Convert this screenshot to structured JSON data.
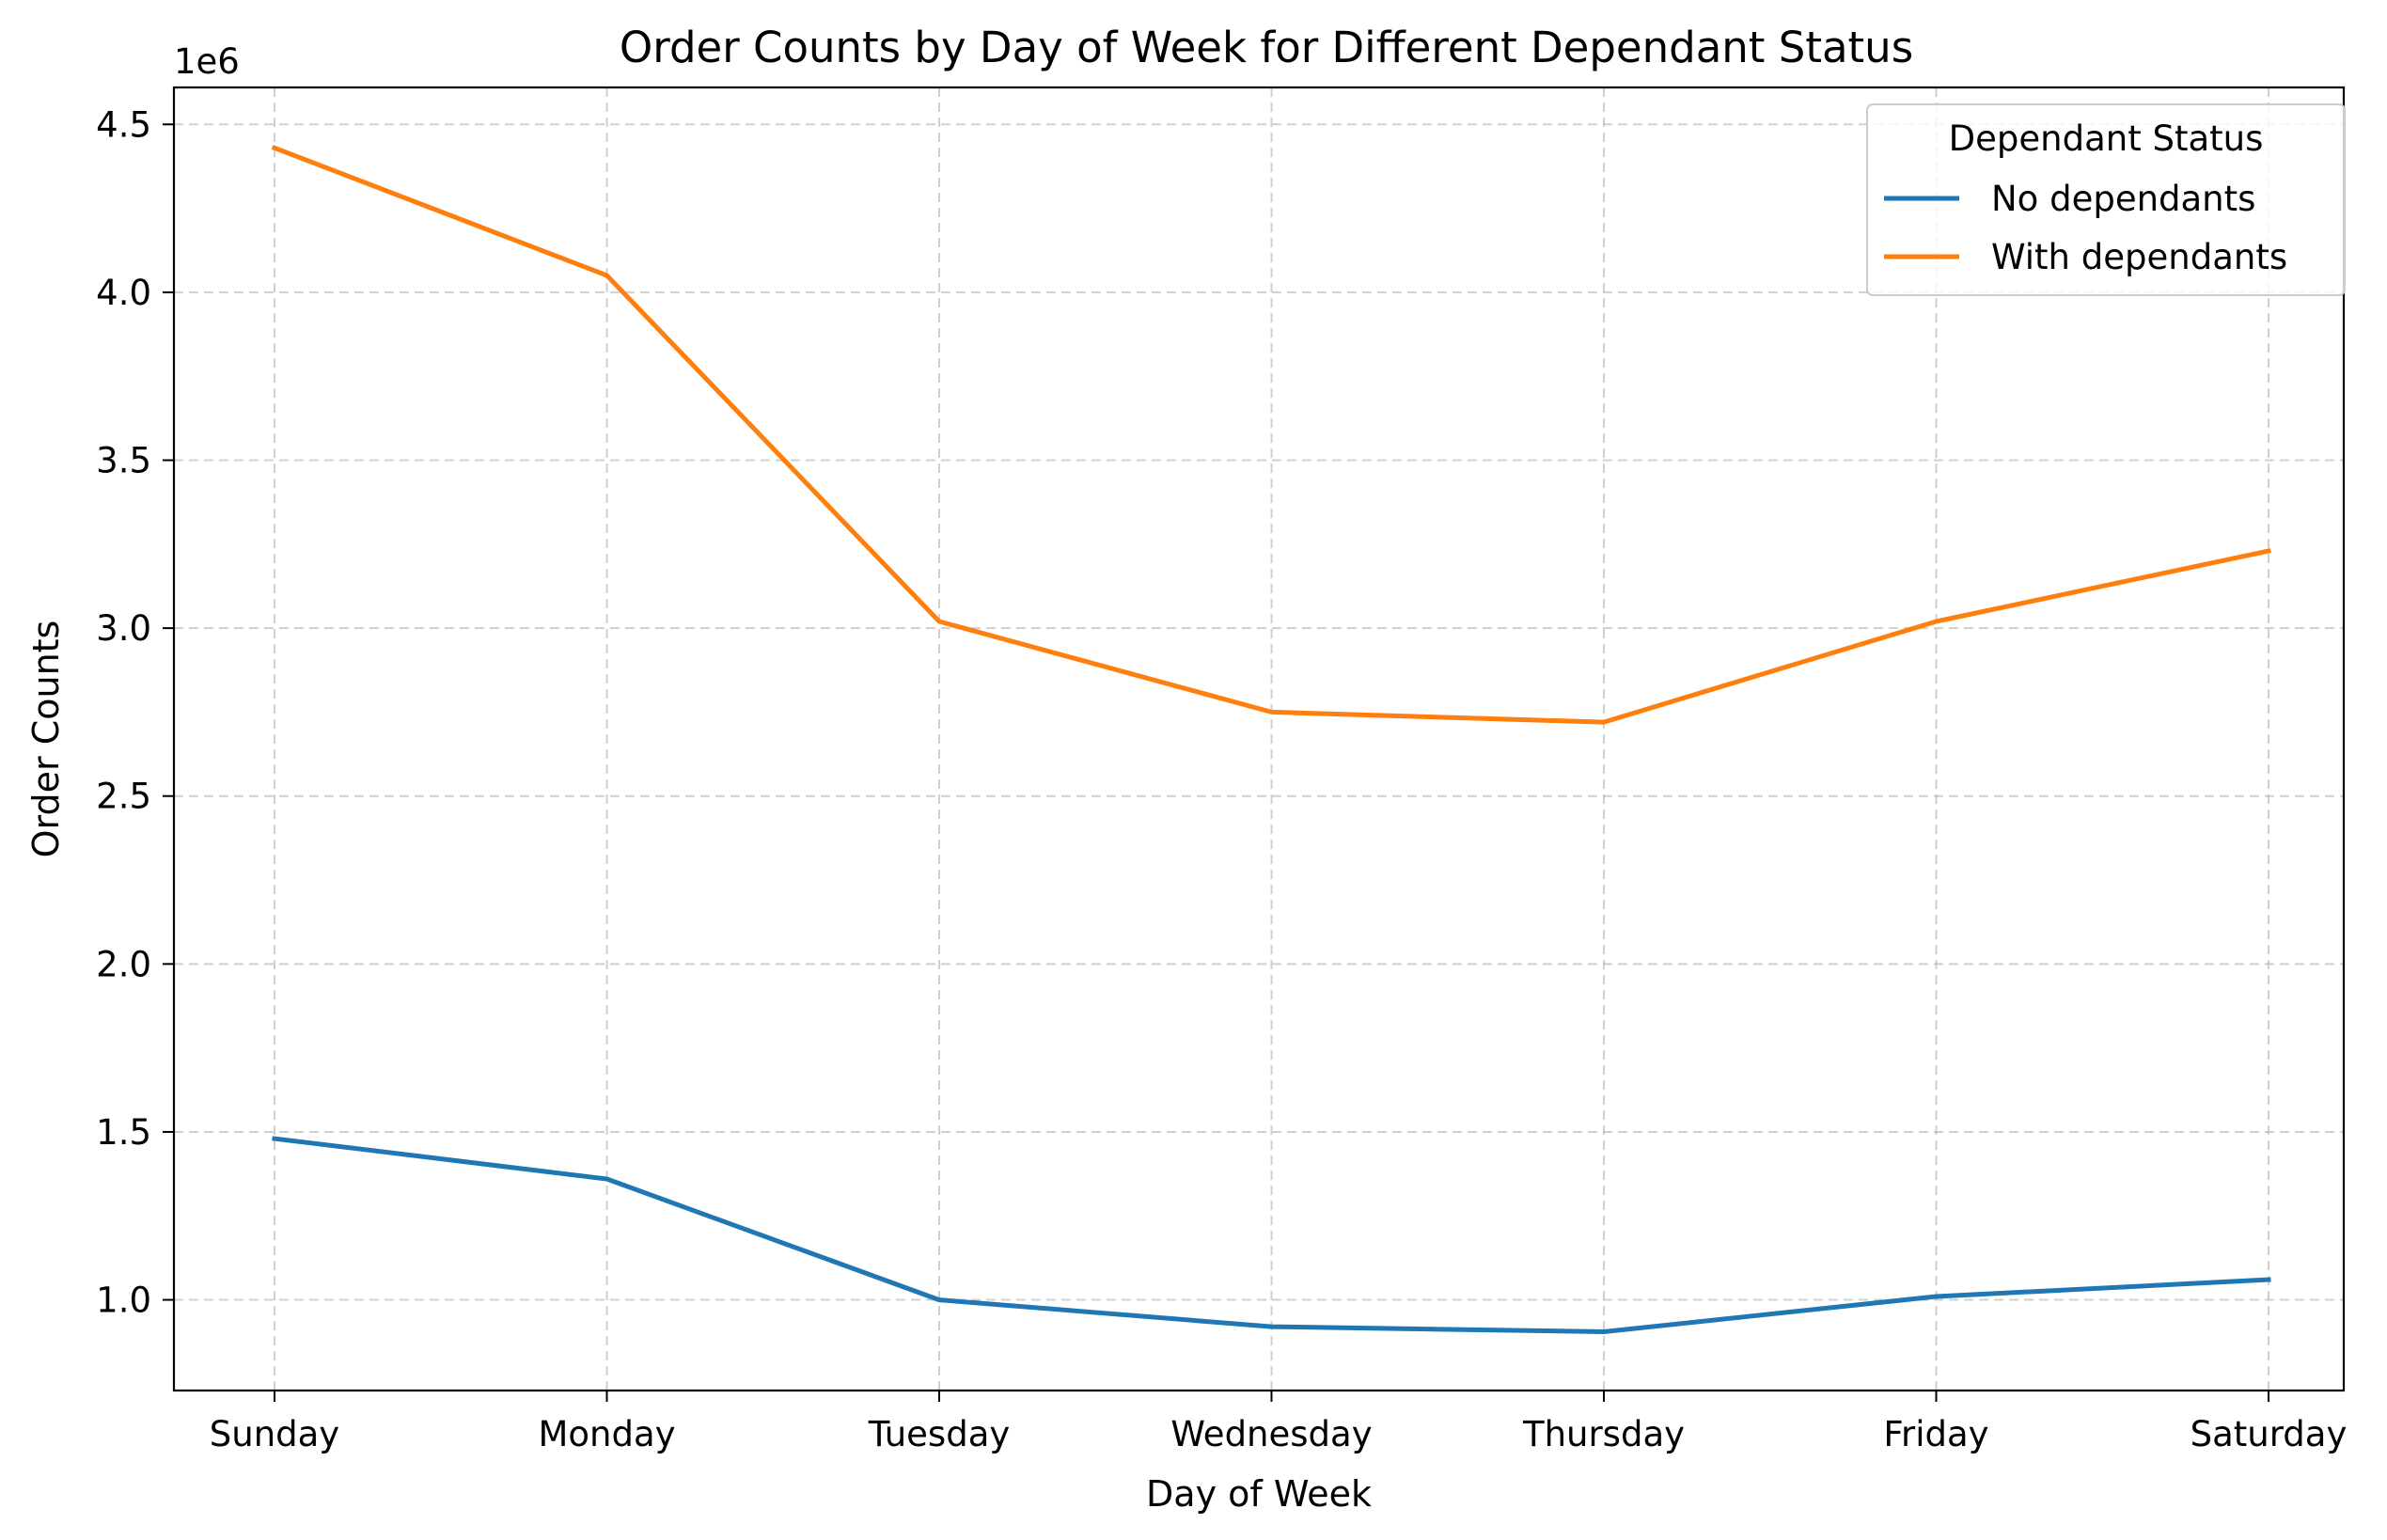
{
  "chart_data": {
    "type": "line",
    "title": "Order Counts by Day of Week for Different Dependant Status",
    "xlabel": "Day of Week",
    "ylabel": "Order Counts",
    "y_offset_label": "1e6",
    "categories": [
      "Sunday",
      "Monday",
      "Tuesday",
      "Wednesday",
      "Thursday",
      "Friday",
      "Saturday"
    ],
    "y_ticks": [
      1.0,
      1.5,
      2.0,
      2.5,
      3.0,
      3.5,
      4.0,
      4.5
    ],
    "y_tick_labels": [
      "1.0",
      "1.5",
      "2.0",
      "2.5",
      "3.0",
      "3.5",
      "4.0",
      "4.5"
    ],
    "ylim": [
      0.73,
      4.61
    ],
    "y_scale_multiplier": 1000000,
    "grid": true,
    "legend": {
      "title": "Dependant Status",
      "placement": "upper right"
    },
    "series": [
      {
        "name": "No dependants",
        "color": "#1f77b4",
        "values": [
          1.48,
          1.36,
          1.0,
          0.92,
          0.905,
          1.01,
          1.06
        ]
      },
      {
        "name": "With dependants",
        "color": "#ff7f0e",
        "values": [
          4.43,
          4.05,
          3.02,
          2.75,
          2.72,
          3.02,
          3.23
        ]
      }
    ]
  }
}
